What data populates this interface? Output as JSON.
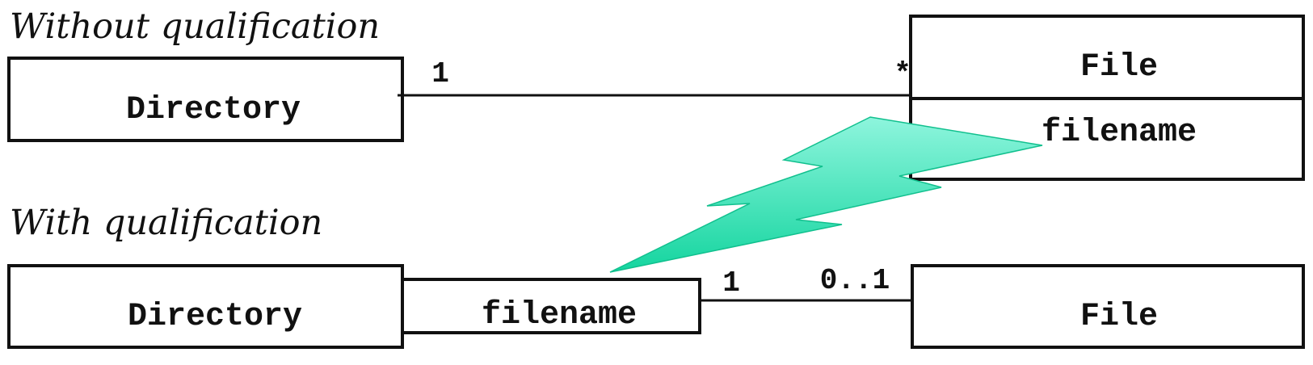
{
  "colors": {
    "ink": "#111111",
    "background": "#ffffff",
    "bolt_light": "#8ef5dd",
    "bolt_dark": "#14d59f"
  },
  "icons": {
    "bolt": "lightning-bolt-icon"
  },
  "sections": {
    "without": {
      "heading": "Without qualification",
      "source_class": "Directory",
      "target_class": "File",
      "target_attribute": "filename",
      "source_multiplicity": "1",
      "target_multiplicity": "*"
    },
    "with": {
      "heading": "With qualification",
      "source_class": "Directory",
      "qualifier": "filename",
      "target_class": "File",
      "source_multiplicity": "1",
      "target_multiplicity": "0..1"
    }
  }
}
